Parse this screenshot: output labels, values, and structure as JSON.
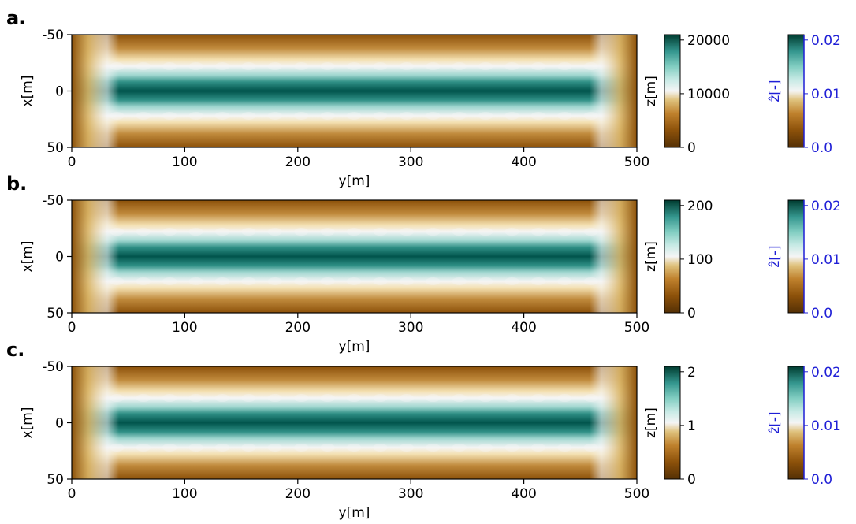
{
  "colors": {
    "low": "#8c510a",
    "mid": "#f5f5f5",
    "high": "#01665e",
    "hat_axis": "#1f1fd6"
  },
  "chart_data": [
    {
      "panel": "a.",
      "type": "heatmap",
      "xlabel": "y[m]",
      "ylabel": "x[m]",
      "xlim": [
        0,
        500
      ],
      "ylim": [
        50,
        -50
      ],
      "xticks": [
        "0",
        "100",
        "200",
        "300",
        "400",
        "500"
      ],
      "yticks": [
        "-50",
        "0",
        "50"
      ],
      "colorbar": {
        "label": "z[m]",
        "range": [
          0,
          21000
        ],
        "ticks": [
          "0",
          "10000",
          "20000"
        ]
      },
      "colorbar_hat": {
        "label": "ẑ[-]",
        "range": [
          0,
          0.021
        ],
        "ticks": [
          "0.0",
          "0.01",
          "0.02"
        ]
      }
    },
    {
      "panel": "b.",
      "type": "heatmap",
      "xlabel": "y[m]",
      "ylabel": "x[m]",
      "xlim": [
        0,
        500
      ],
      "ylim": [
        50,
        -50
      ],
      "xticks": [
        "0",
        "100",
        "200",
        "300",
        "400",
        "500"
      ],
      "yticks": [
        "-50",
        "0",
        "50"
      ],
      "colorbar": {
        "label": "z[m]",
        "range": [
          0,
          210
        ],
        "ticks": [
          "0",
          "100",
          "200"
        ]
      },
      "colorbar_hat": {
        "label": "ẑ[-]",
        "range": [
          0,
          0.021
        ],
        "ticks": [
          "0.0",
          "0.01",
          "0.02"
        ]
      }
    },
    {
      "panel": "c.",
      "type": "heatmap",
      "xlabel": "y[m]",
      "ylabel": "x[m]",
      "xlim": [
        0,
        500
      ],
      "ylim": [
        50,
        -50
      ],
      "xticks": [
        "0",
        "100",
        "200",
        "300",
        "400",
        "500"
      ],
      "yticks": [
        "-50",
        "0",
        "50"
      ],
      "colorbar": {
        "label": "z[m]",
        "range": [
          0,
          2.1
        ],
        "ticks": [
          "0",
          "1",
          "2"
        ]
      },
      "colorbar_hat": {
        "label": "ẑ[-]",
        "range": [
          0,
          0.021
        ],
        "ticks": [
          "0.0",
          "0.01",
          "0.02"
        ]
      }
    }
  ]
}
